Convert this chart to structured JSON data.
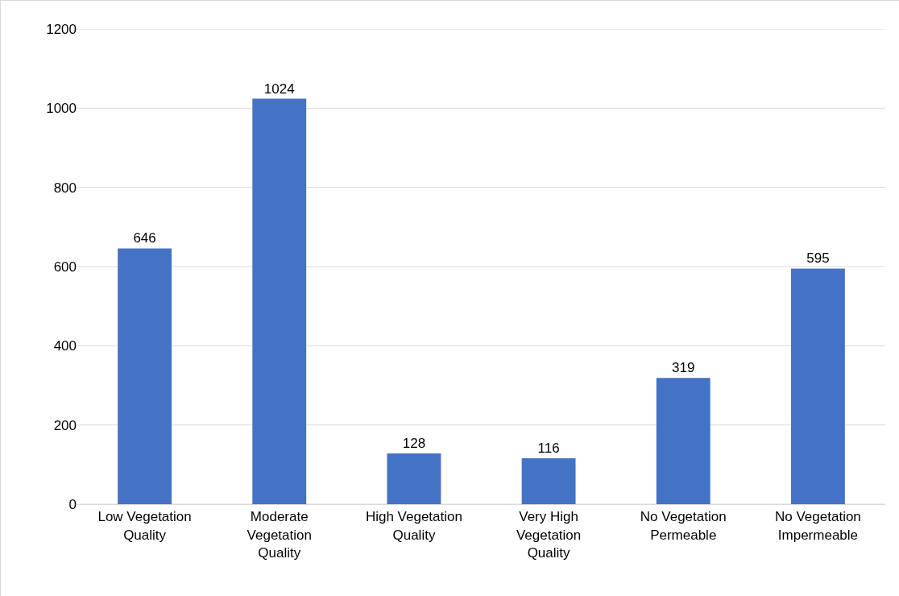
{
  "chart_data": {
    "type": "bar",
    "categories": [
      "Low Vegetation Quality",
      "Moderate Vegetation Quality",
      "High Vegetation Quality",
      "Very High Vegetation Quality",
      "No Vegetation Permeable",
      "No Vegetation Impermeable"
    ],
    "values": [
      646,
      1024,
      128,
      116,
      319,
      595
    ],
    "color": "#4472c4",
    "ylim": [
      0,
      1200
    ],
    "yticks": [
      0,
      200,
      400,
      600,
      800,
      1000,
      1200
    ],
    "grid": "y",
    "data_labels": true
  }
}
